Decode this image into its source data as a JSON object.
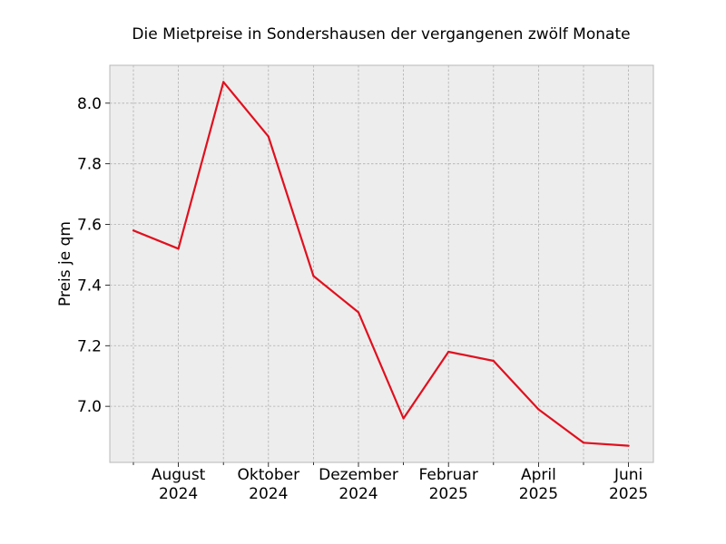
{
  "chart_data": {
    "type": "line",
    "title": "Die Mietpreise in Sondershausen der vergangenen zwölf Monate",
    "xlabel": "",
    "ylabel": "Preis je qm",
    "x": [
      "2024-07",
      "2024-08",
      "2024-09",
      "2024-10",
      "2024-11",
      "2024-12",
      "2025-01",
      "2025-02",
      "2025-03",
      "2025-04",
      "2025-05",
      "2025-06"
    ],
    "series": [
      {
        "values": [
          7.58,
          7.52,
          8.07,
          7.89,
          7.43,
          7.31,
          6.96,
          7.18,
          7.15,
          6.99,
          6.88,
          6.87
        ]
      }
    ],
    "x_ticks": [
      {
        "x": "2024-08",
        "line1": "August",
        "line2": "2024"
      },
      {
        "x": "2024-10",
        "line1": "Oktober",
        "line2": "2024"
      },
      {
        "x": "2024-12",
        "line1": "Dezember",
        "line2": "2024"
      },
      {
        "x": "2025-02",
        "line1": "Februar",
        "line2": "2025"
      },
      {
        "x": "2025-04",
        "line1": "April",
        "line2": "2025"
      },
      {
        "x": "2025-06",
        "line1": "Juni",
        "line2": "2025"
      }
    ],
    "y_ticks": [
      "7.0",
      "7.2",
      "7.4",
      "7.6",
      "7.8",
      "8.0"
    ],
    "ylim": [
      6.815,
      8.125
    ],
    "grid": true,
    "colors": {
      "line": "#e0101e",
      "plot_bg": "#ededed",
      "grid": "#b0b0b0",
      "frame": "#b8b8b8"
    }
  }
}
